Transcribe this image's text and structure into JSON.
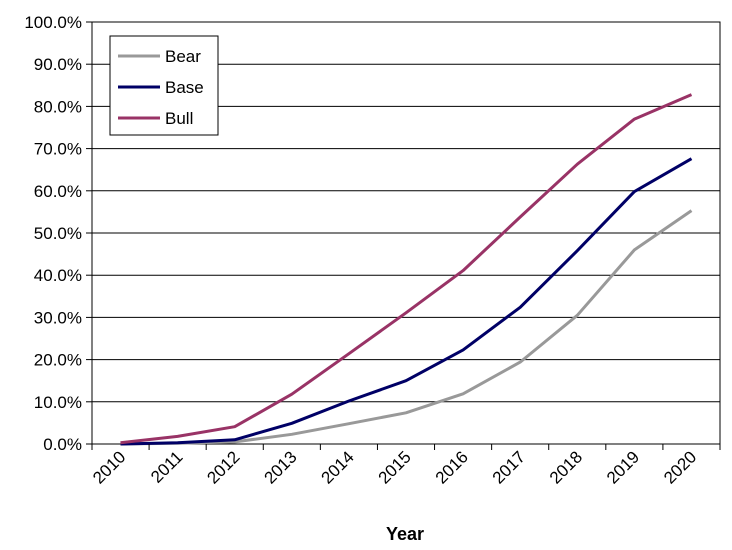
{
  "chart_data": {
    "type": "line",
    "title": "",
    "xlabel": "Year",
    "ylabel": "",
    "categories": [
      "2010",
      "2011",
      "2012",
      "2013",
      "2014",
      "2015",
      "2016",
      "2017",
      "2018",
      "2019",
      "2020"
    ],
    "ylim": [
      0,
      100
    ],
    "y_ticks": [
      "0.0%",
      "10.0%",
      "20.0%",
      "30.0%",
      "40.0%",
      "50.0%",
      "60.0%",
      "70.0%",
      "80.0%",
      "90.0%",
      "100.0%"
    ],
    "grid": true,
    "legend_position": "top-left",
    "series": [
      {
        "name": "Bear",
        "color": "#999999",
        "values": [
          0.0,
          0.2,
          0.5,
          2.3,
          4.8,
          7.4,
          11.9,
          19.4,
          30.5,
          46.0,
          55.3
        ]
      },
      {
        "name": "Base",
        "color": "#000066",
        "values": [
          0.0,
          0.3,
          1.0,
          4.9,
          10.2,
          15.0,
          22.3,
          32.4,
          45.8,
          59.8,
          67.6
        ]
      },
      {
        "name": "Bull",
        "color": "#993366",
        "values": [
          0.3,
          1.8,
          4.1,
          11.8,
          21.4,
          31.1,
          41.1,
          53.8,
          66.3,
          77.0,
          82.8
        ]
      }
    ]
  }
}
